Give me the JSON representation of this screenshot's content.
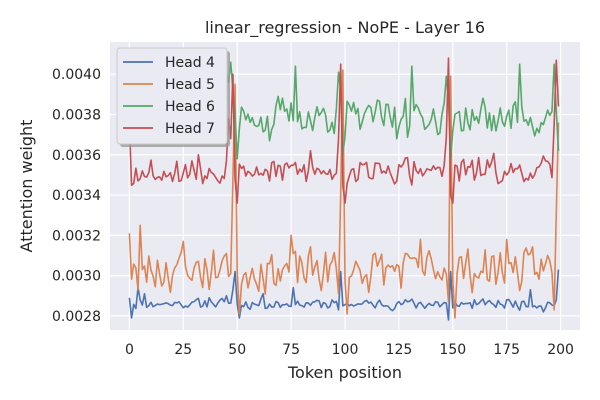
{
  "chart_data": {
    "type": "line",
    "title": "linear_regression - NoPE - Layer 16",
    "xlabel": "Token position",
    "ylabel": "Attention weight",
    "xlim": [
      -9,
      209
    ],
    "ylim": [
      0.00273,
      0.00416
    ],
    "xticks": [
      0,
      25,
      50,
      75,
      100,
      125,
      150,
      175,
      200
    ],
    "yticks": [
      0.0028,
      0.003,
      0.0032,
      0.0034,
      0.0036,
      0.0038,
      0.004
    ],
    "ytick_labels": [
      "0.0028",
      "0.0030",
      "0.0032",
      "0.0034",
      "0.0036",
      "0.0038",
      "0.0040"
    ],
    "grid": true,
    "legend_position": "top-left",
    "series": [
      {
        "name": "Head 4",
        "color": "#4c72b0",
        "baseline": 0.00286,
        "noise": 3e-05,
        "seed": 11,
        "key": [
          [
            0,
            0.00289
          ],
          [
            1,
            0.00279
          ],
          [
            4,
            0.00294
          ],
          [
            7,
            0.00291
          ],
          [
            23,
            0.00287
          ],
          [
            37,
            0.00289
          ],
          [
            45,
            0.0029
          ],
          [
            48,
            0.00293
          ],
          [
            49,
            0.00302
          ],
          [
            50,
            0.00286
          ],
          [
            51,
            0.00279
          ],
          [
            62,
            0.00291
          ],
          [
            76,
            0.00294
          ],
          [
            86,
            0.00287
          ],
          [
            97,
            0.00283
          ],
          [
            98,
            0.00302
          ],
          [
            99,
            0.00285
          ],
          [
            114,
            0.00284
          ],
          [
            129,
            0.00287
          ],
          [
            148,
            0.00278
          ],
          [
            149,
            0.00302
          ],
          [
            150,
            0.00284
          ],
          [
            160,
            0.00288
          ],
          [
            175,
            0.00288
          ],
          [
            186,
            0.00293
          ],
          [
            192,
            0.00282
          ],
          [
            198,
            0.00288
          ],
          [
            199,
            0.00303
          ]
        ]
      },
      {
        "name": "Head 5",
        "color": "#dd8452",
        "baseline": 0.00303,
        "noise": 0.00012,
        "seed": 23,
        "key": [
          [
            0,
            0.00321
          ],
          [
            4,
            0.00293
          ],
          [
            5,
            0.00325
          ],
          [
            6,
            0.00303
          ],
          [
            25,
            0.00317
          ],
          [
            45,
            0.00311
          ],
          [
            47,
            0.00301
          ],
          [
            48,
            0.00347
          ],
          [
            49,
            0.00395
          ],
          [
            50,
            0.00302
          ],
          [
            51,
            0.00281
          ],
          [
            75,
            0.0032
          ],
          [
            97,
            0.00291
          ],
          [
            98,
            0.0034
          ],
          [
            99,
            0.00402
          ],
          [
            100,
            0.00298
          ],
          [
            101,
            0.00281
          ],
          [
            135,
            0.00318
          ],
          [
            148,
            0.00287
          ],
          [
            149,
            0.00399
          ],
          [
            150,
            0.00298
          ],
          [
            151,
            0.00279
          ],
          [
            175,
            0.00318
          ],
          [
            194,
            0.0031
          ],
          [
            197,
            0.00283
          ],
          [
            198,
            0.00331
          ],
          [
            199,
            0.00376
          ]
        ]
      },
      {
        "name": "Head 6",
        "color": "#55a868",
        "baseline": 0.00379,
        "noise": 0.0001,
        "seed": 37,
        "key": [
          [
            0,
            0.00398
          ],
          [
            3,
            0.00373
          ],
          [
            5,
            0.00392
          ],
          [
            10,
            0.00374
          ],
          [
            22,
            0.00376
          ],
          [
            25,
            0.00387
          ],
          [
            37,
            0.00376
          ],
          [
            40,
            0.00389
          ],
          [
            45,
            0.00401
          ],
          [
            46,
            0.00396
          ],
          [
            47,
            0.00406
          ],
          [
            48,
            0.00392
          ],
          [
            49,
            0.00381
          ],
          [
            50,
            0.00358
          ],
          [
            51,
            0.00373
          ],
          [
            65,
            0.00367
          ],
          [
            69,
            0.00389
          ],
          [
            77,
            0.00404
          ],
          [
            85,
            0.00372
          ],
          [
            96,
            0.00383
          ],
          [
            97,
            0.00401
          ],
          [
            98,
            0.00392
          ],
          [
            99,
            0.0036
          ],
          [
            100,
            0.00369
          ],
          [
            124,
            0.00368
          ],
          [
            128,
            0.00388
          ],
          [
            131,
            0.00404
          ],
          [
            147,
            0.00399
          ],
          [
            148,
            0.00387
          ],
          [
            149,
            0.00358
          ],
          [
            150,
            0.00372
          ],
          [
            168,
            0.00372
          ],
          [
            181,
            0.00405
          ],
          [
            190,
            0.00371
          ],
          [
            197,
            0.00405
          ],
          [
            198,
            0.00382
          ],
          [
            199,
            0.00362
          ]
        ]
      },
      {
        "name": "Head 7",
        "color": "#c44e52",
        "baseline": 0.00352,
        "noise": 8e-05,
        "seed": 53,
        "key": [
          [
            0,
            0.00376
          ],
          [
            4,
            0.00347
          ],
          [
            6,
            0.00352
          ],
          [
            25,
            0.00351
          ],
          [
            32,
            0.0036
          ],
          [
            45,
            0.00357
          ],
          [
            46,
            0.00378
          ],
          [
            47,
            0.00368
          ],
          [
            48,
            0.004
          ],
          [
            49,
            0.00348
          ],
          [
            50,
            0.00336
          ],
          [
            65,
            0.00347
          ],
          [
            84,
            0.00362
          ],
          [
            97,
            0.00368
          ],
          [
            98,
            0.00405
          ],
          [
            99,
            0.00345
          ],
          [
            100,
            0.00336
          ],
          [
            131,
            0.00345
          ],
          [
            147,
            0.00369
          ],
          [
            148,
            0.00408
          ],
          [
            149,
            0.0034
          ],
          [
            150,
            0.00336
          ],
          [
            175,
            0.0035
          ],
          [
            197,
            0.00375
          ],
          [
            198,
            0.00407
          ],
          [
            199,
            0.00384
          ]
        ]
      }
    ]
  }
}
